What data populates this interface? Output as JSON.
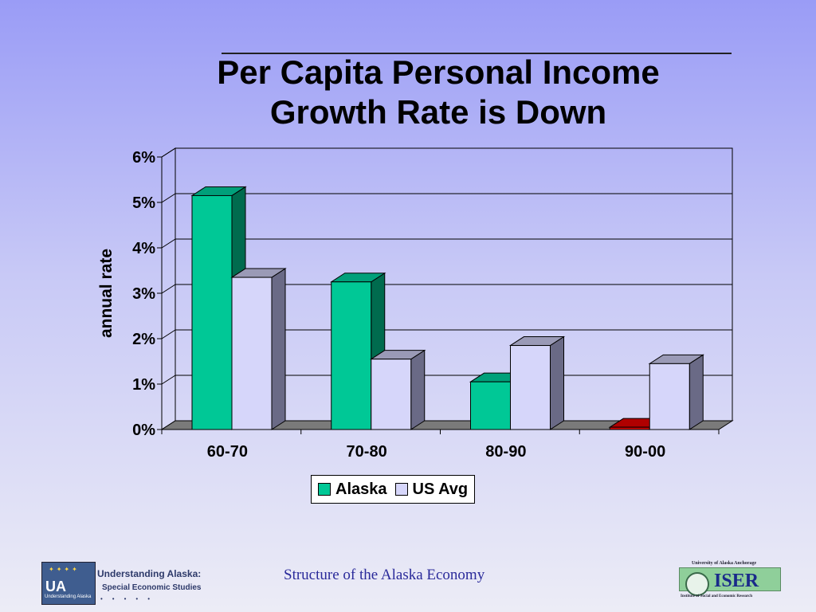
{
  "slide": {
    "title_line1": "Per Capita Personal Income",
    "title_line2": "Growth Rate is Down",
    "footer": "Structure of the Alaska Economy",
    "left_logo": {
      "box_text": "UA",
      "box_caption": "Understanding Alaska",
      "title": "Understanding Alaska:",
      "subtitle": "Special Economic Studies"
    },
    "right_logo": {
      "top_text": "University of Alaska Anchorage",
      "name": "ISER",
      "bottom_text": "Institute of Social and Economic Research"
    }
  },
  "chart_data": {
    "type": "bar",
    "style": "3d-clustered",
    "categories": [
      "60-70",
      "70-80",
      "80-90",
      "90-00"
    ],
    "series": [
      {
        "name": "Alaska",
        "values": [
          5.15,
          3.25,
          1.05,
          0.05
        ],
        "color": "#00c896",
        "side_color": "#006b4e",
        "top_color": "#00a07a",
        "negative_color": "#d80000",
        "negative_side": "#7a0000",
        "negative_top": "#b00000"
      },
      {
        "name": "US Avg",
        "values": [
          3.35,
          1.55,
          1.85,
          1.45
        ],
        "color": "#d6d6fa",
        "side_color": "#6a6a86",
        "top_color": "#9a9ab6"
      }
    ],
    "ylabel": "annual rate",
    "xlabel": "",
    "ylim": [
      0,
      6
    ],
    "yticks": [
      "0%",
      "1%",
      "2%",
      "3%",
      "4%",
      "5%",
      "6%"
    ],
    "gridlines": true,
    "legend": "bottom"
  }
}
